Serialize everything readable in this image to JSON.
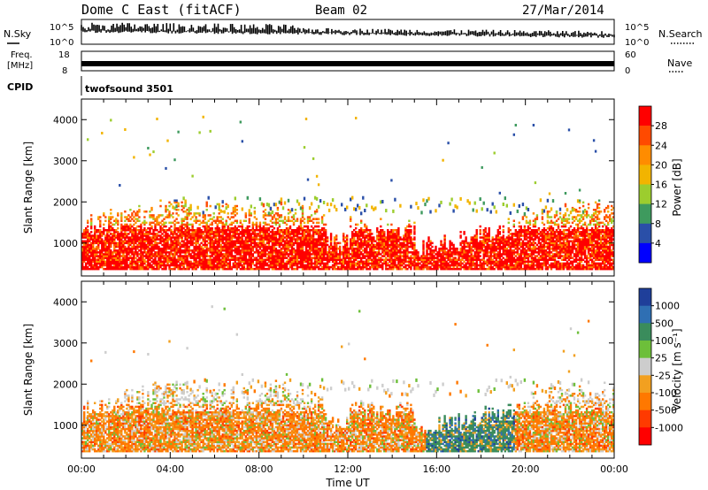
{
  "header": {
    "title": "Dome C East (fitACF)",
    "beam": "Beam 02",
    "date": "27/Mar/2014"
  },
  "top_panels": {
    "nsky_label": "N.Sky",
    "nsky_ticks": [
      "10^5",
      "10^0"
    ],
    "nsearch_label": "N.Search",
    "freq_label": "Freq.",
    "freq_unit": "[MHz]",
    "freq_ticks": [
      "18",
      "8"
    ],
    "nave_label": "Nave",
    "nave_ticks": [
      "60",
      "0"
    ],
    "cpid_label": "CPID",
    "cpid_value": "twofsound 3501"
  },
  "chart_data": [
    {
      "type": "heatmap",
      "name": "power",
      "ylabel": "Slant Range [km]",
      "yticks": [
        1000,
        2000,
        3000,
        4000
      ],
      "ylim": [
        200,
        4500
      ],
      "xlim": [
        0,
        24
      ],
      "colorbar": {
        "label": "Power [dB]",
        "ticks": [
          "28",
          "24",
          "20",
          "16",
          "12",
          "8",
          "4"
        ],
        "colors": [
          "#ff0000",
          "#ff4a00",
          "#ff8c00",
          "#f2b400",
          "#9ccd2e",
          "#3e9a5e",
          "#2a4fa8",
          "#0000ff"
        ]
      }
    },
    {
      "type": "heatmap",
      "name": "velocity",
      "ylabel": "Slant Range [km]",
      "yticks": [
        1000,
        2000,
        3000,
        4000
      ],
      "ylim": [
        200,
        4500
      ],
      "xlim": [
        0,
        24
      ],
      "colorbar": {
        "label": "Velocity [m s⁻¹]",
        "ticks": [
          "1000",
          "500",
          "100",
          "25",
          "-25",
          "-100",
          "-500",
          "-1000"
        ],
        "colors": [
          "#1f3f9a",
          "#2f6fb3",
          "#3a8c5c",
          "#6dbf3a",
          "#cdcdcd",
          "#f2a020",
          "#ff7800",
          "#ff3a00",
          "#ff0000"
        ]
      }
    }
  ],
  "xaxis": {
    "label": "Time UT",
    "ticks": [
      "00:00",
      "04:00",
      "08:00",
      "12:00",
      "16:00",
      "20:00",
      "00:00"
    ]
  }
}
